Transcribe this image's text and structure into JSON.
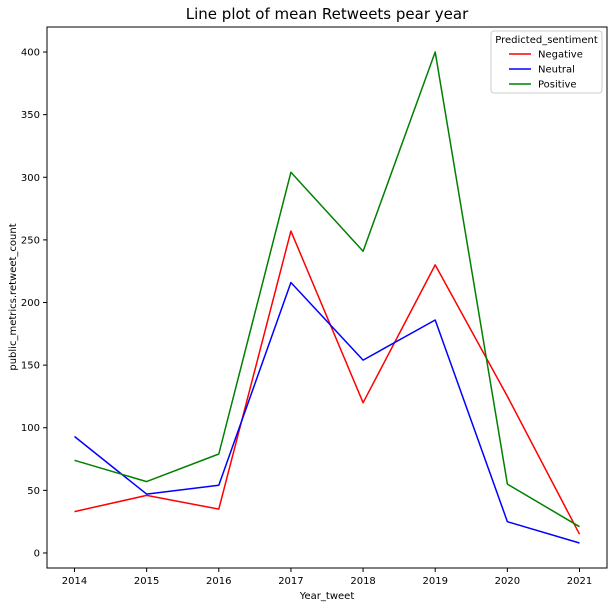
{
  "chart_data": {
    "type": "line",
    "title": "Line plot of mean Retweets pear year",
    "xlabel": "Year_tweet",
    "ylabel": "public_metrics.retweet_count",
    "x": [
      "2014",
      "2015",
      "2016",
      "2017",
      "2018",
      "2019",
      "2020",
      "2021"
    ],
    "yticks": [
      "0",
      "50",
      "100",
      "150",
      "200",
      "250",
      "300",
      "350",
      "400"
    ],
    "ylim": [
      -12,
      420
    ],
    "grid": false,
    "legend": {
      "title": "Predicted_sentiment",
      "placement": "top-right"
    },
    "series": [
      {
        "name": "Negative",
        "color": "#ff0000",
        "values": [
          33,
          46,
          35,
          257,
          120,
          230,
          125,
          15
        ]
      },
      {
        "name": "Neutral",
        "color": "#0000ff",
        "values": [
          93,
          47,
          54,
          216,
          154,
          186,
          25,
          8
        ]
      },
      {
        "name": "Positive",
        "color": "#008000",
        "values": [
          74,
          57,
          79,
          304,
          241,
          400,
          55,
          21
        ]
      }
    ]
  }
}
